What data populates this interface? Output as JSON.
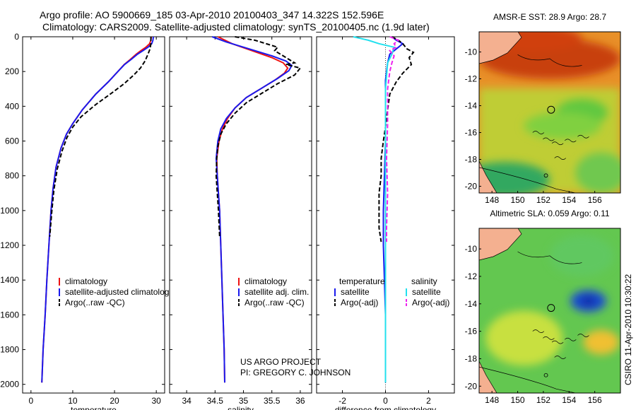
{
  "header": {
    "line1": "Argo profile: AO 5900669_185 03-Apr-2010 20100403_347 14.322S 152.596E",
    "line2": "Climatology: CARS2009. Satellite-adjusted climatology: synTS_20100405.nc (1.9d later)"
  },
  "colors": {
    "climatology": "#ee1111",
    "satellite": "#1a1aee",
    "argo": "#000000",
    "satellite_salinity": "#22e0ee",
    "argo_salinity_adj": "#ee22ee"
  },
  "side_text": {
    "project": "US ARGO PROJECT",
    "pi": "PI: GREGORY C. JOHNSON",
    "credit": "CSIRO 11-Apr-2010 10:30:22"
  },
  "chart_data": [
    {
      "type": "line",
      "id": "temperature",
      "xlabel": "temperature",
      "ylabel": "",
      "xlim": [
        -2,
        32
      ],
      "ylim": [
        2050,
        0
      ],
      "xticks": [
        0,
        10,
        20,
        30
      ],
      "yticks": [
        0,
        200,
        400,
        600,
        800,
        1000,
        1200,
        1400,
        1600,
        1800,
        2000
      ],
      "legend": {
        "position": "lower-center",
        "entries": [
          "climatology",
          "satellite-adjusted climatology",
          "Argo(..raw -QC)"
        ]
      },
      "series": [
        {
          "name": "climatology",
          "style": "solid",
          "color_key": "climatology",
          "points": [
            [
              28.8,
              0
            ],
            [
              28.7,
              20
            ],
            [
              28.4,
              40
            ],
            [
              27.5,
              60
            ],
            [
              26.3,
              80
            ],
            [
              25.2,
              100
            ],
            [
              23.8,
              130
            ],
            [
              22.3,
              160
            ],
            [
              20.8,
              200
            ],
            [
              18.5,
              260
            ],
            [
              15.5,
              330
            ],
            [
              12.3,
              420
            ],
            [
              10.0,
              500
            ],
            [
              8.5,
              560
            ],
            [
              7.2,
              640
            ],
            [
              6.0,
              750
            ],
            [
              5.3,
              870
            ],
            [
              4.8,
              1000
            ],
            [
              4.3,
              1200
            ],
            [
              3.8,
              1400
            ],
            [
              3.4,
              1600
            ],
            [
              2.9,
              1800
            ],
            [
              2.6,
              1990
            ]
          ]
        },
        {
          "name": "satellite-adjusted climatology",
          "style": "solid",
          "color_key": "satellite",
          "points": [
            [
              29.3,
              0
            ],
            [
              29.2,
              20
            ],
            [
              28.9,
              40
            ],
            [
              28.0,
              60
            ],
            [
              26.8,
              80
            ],
            [
              25.5,
              100
            ],
            [
              24.0,
              130
            ],
            [
              22.4,
              160
            ],
            [
              20.8,
              200
            ],
            [
              18.5,
              260
            ],
            [
              15.5,
              330
            ],
            [
              12.3,
              420
            ],
            [
              10.0,
              500
            ],
            [
              8.5,
              560
            ],
            [
              7.2,
              640
            ],
            [
              6.0,
              750
            ],
            [
              5.3,
              870
            ],
            [
              4.8,
              1000
            ],
            [
              4.3,
              1200
            ],
            [
              3.8,
              1400
            ],
            [
              3.4,
              1600
            ],
            [
              2.9,
              1800
            ],
            [
              2.6,
              1990
            ]
          ]
        },
        {
          "name": "Argo(..raw -QC)",
          "style": "dashed",
          "color_key": "argo",
          "points": [
            [
              28.7,
              0
            ],
            [
              28.7,
              40
            ],
            [
              28.5,
              70
            ],
            [
              28.0,
              100
            ],
            [
              27.3,
              140
            ],
            [
              26.2,
              180
            ],
            [
              24.6,
              220
            ],
            [
              22.3,
              270
            ],
            [
              19.0,
              330
            ],
            [
              15.5,
              390
            ],
            [
              12.0,
              460
            ],
            [
              10.0,
              520
            ],
            [
              8.6,
              580
            ],
            [
              7.4,
              660
            ],
            [
              6.3,
              760
            ],
            [
              5.5,
              880
            ],
            [
              5.0,
              1000
            ],
            [
              4.5,
              1150
            ]
          ]
        }
      ]
    },
    {
      "type": "line",
      "id": "salinity",
      "xlabel": "salinity",
      "ylabel": "",
      "xlim": [
        33.7,
        36.2
      ],
      "ylim": [
        2050,
        0
      ],
      "xticks": [
        34,
        34.5,
        35,
        35.5,
        36
      ],
      "xtick_labels": [
        "34",
        "34.5",
        "35",
        "35.5",
        "36"
      ],
      "legend": {
        "position": "lower-center",
        "entries": [
          "climatology",
          "satellite adj. clim.",
          "Argo(..raw -QC)"
        ]
      },
      "series": [
        {
          "name": "climatology",
          "style": "solid",
          "color_key": "climatology",
          "points": [
            [
              34.55,
              0
            ],
            [
              34.8,
              40
            ],
            [
              35.15,
              80
            ],
            [
              35.5,
              120
            ],
            [
              35.7,
              150
            ],
            [
              35.78,
              180
            ],
            [
              35.72,
              210
            ],
            [
              35.55,
              250
            ],
            [
              35.3,
              300
            ],
            [
              35.05,
              350
            ],
            [
              34.85,
              410
            ],
            [
              34.72,
              470
            ],
            [
              34.63,
              530
            ],
            [
              34.57,
              600
            ],
            [
              34.53,
              700
            ],
            [
              34.54,
              800
            ],
            [
              34.56,
              900
            ],
            [
              34.58,
              1000
            ],
            [
              34.6,
              1200
            ],
            [
              34.62,
              1400
            ],
            [
              34.64,
              1600
            ],
            [
              34.66,
              1800
            ],
            [
              34.67,
              1990
            ]
          ]
        },
        {
          "name": "satellite adj. clim.",
          "style": "solid",
          "color_key": "satellite",
          "points": [
            [
              34.45,
              0
            ],
            [
              34.7,
              30
            ],
            [
              35.1,
              70
            ],
            [
              35.5,
              110
            ],
            [
              35.75,
              140
            ],
            [
              35.85,
              165
            ],
            [
              35.8,
              195
            ],
            [
              35.6,
              240
            ],
            [
              35.3,
              300
            ],
            [
              35.05,
              350
            ],
            [
              34.85,
              410
            ],
            [
              34.7,
              470
            ],
            [
              34.6,
              530
            ],
            [
              34.55,
              600
            ],
            [
              34.52,
              700
            ],
            [
              34.54,
              800
            ],
            [
              34.56,
              900
            ],
            [
              34.58,
              1000
            ],
            [
              34.6,
              1200
            ],
            [
              34.62,
              1400
            ],
            [
              34.64,
              1600
            ],
            [
              34.66,
              1800
            ],
            [
              34.67,
              1990
            ]
          ]
        },
        {
          "name": "Argo(..raw -QC)",
          "style": "dashed",
          "color_key": "argo",
          "points": [
            [
              34.85,
              0
            ],
            [
              35.2,
              20
            ],
            [
              35.6,
              60
            ],
            [
              35.55,
              80
            ],
            [
              35.9,
              150
            ],
            [
              35.75,
              160
            ],
            [
              36.0,
              180
            ],
            [
              35.9,
              220
            ],
            [
              35.6,
              270
            ],
            [
              35.3,
              330
            ],
            [
              35.05,
              380
            ],
            [
              34.85,
              440
            ],
            [
              34.7,
              500
            ],
            [
              34.6,
              560
            ],
            [
              34.55,
              630
            ],
            [
              34.53,
              700
            ],
            [
              34.52,
              800
            ],
            [
              34.54,
              900
            ],
            [
              34.56,
              1000
            ],
            [
              34.58,
              1150
            ]
          ]
        }
      ]
    },
    {
      "type": "line",
      "id": "difference",
      "xlabel": "difference from climatology",
      "ylabel": "",
      "xlim": [
        -3.2,
        3.2
      ],
      "ylim": [
        2050,
        0
      ],
      "xticks": [
        -2,
        0,
        2
      ],
      "legend": {
        "position": "lower-center",
        "columns": [
          {
            "title": "temperature",
            "entries": [
              "satellite",
              "Argo(-adj)"
            ]
          },
          {
            "title": "salinity",
            "entries": [
              "satellite",
              "Argo(-adj)"
            ]
          }
        ]
      },
      "series": [
        {
          "name": "temperature satellite",
          "style": "solid",
          "color_key": "satellite",
          "points": [
            [
              0.3,
              0
            ],
            [
              0.5,
              20
            ],
            [
              0.8,
              40
            ],
            [
              0.6,
              60
            ],
            [
              0.2,
              100
            ],
            [
              0.1,
              150
            ],
            [
              0,
              250
            ],
            [
              0,
              400
            ],
            [
              0,
              600
            ],
            [
              -0.05,
              800
            ],
            [
              -0.1,
              1000
            ],
            [
              -0.1,
              1200
            ],
            [
              -0.05,
              1400
            ],
            [
              0,
              1600
            ],
            [
              0,
              1800
            ],
            [
              0,
              1990
            ]
          ]
        },
        {
          "name": "temperature Argo(-adj)",
          "style": "dashed",
          "color_key": "argo",
          "points": [
            [
              0.3,
              0
            ],
            [
              0.6,
              20
            ],
            [
              0.8,
              40
            ],
            [
              1.0,
              70
            ],
            [
              1.3,
              90
            ],
            [
              1.1,
              120
            ],
            [
              1.2,
              160
            ],
            [
              0.8,
              210
            ],
            [
              0.5,
              260
            ],
            [
              0.2,
              330
            ],
            [
              0.1,
              420
            ],
            [
              0,
              520
            ],
            [
              -0.1,
              600
            ],
            [
              -0.2,
              700
            ],
            [
              -0.2,
              800
            ],
            [
              -0.3,
              900
            ],
            [
              -0.3,
              1000
            ],
            [
              -0.3,
              1100
            ],
            [
              -0.2,
              1180
            ]
          ]
        },
        {
          "name": "salinity satellite",
          "style": "solid",
          "color_key": "satellite_salinity",
          "points": [
            [
              -1.5,
              0
            ],
            [
              -0.8,
              20
            ],
            [
              -0.3,
              40
            ],
            [
              0.4,
              60
            ],
            [
              0.3,
              100
            ],
            [
              0.1,
              150
            ],
            [
              0,
              300
            ],
            [
              0,
              600
            ],
            [
              0,
              1000
            ],
            [
              0,
              1400
            ],
            [
              0,
              1800
            ],
            [
              0,
              1990
            ]
          ]
        },
        {
          "name": "salinity Argo(-adj)",
          "style": "dashed",
          "color_key": "argo_salinity_adj",
          "points": [
            [
              0.2,
              0
            ],
            [
              0.6,
              20
            ],
            [
              0.4,
              40
            ],
            [
              0.5,
              60
            ],
            [
              0.2,
              80
            ],
            [
              0.4,
              110
            ],
            [
              0.3,
              150
            ],
            [
              0.2,
              200
            ],
            [
              0.1,
              300
            ],
            [
              0.1,
              500
            ],
            [
              0.05,
              700
            ],
            [
              0.1,
              900
            ],
            [
              0.05,
              1100
            ],
            [
              0.05,
              1180
            ]
          ]
        }
      ]
    },
    {
      "type": "heatmap",
      "id": "sst_map",
      "title": "AMSR-E SST: 28.9 Argo: 28.7",
      "xlim": [
        147,
        158
      ],
      "ylim": [
        -20.5,
        -8.5
      ],
      "xticks": [
        148,
        150,
        152,
        154,
        156
      ],
      "yticks": [
        -10,
        -12,
        -14,
        -16,
        -18,
        -20
      ],
      "profile_location": {
        "lon": 152.6,
        "lat": -14.3
      },
      "secondary_marker": {
        "lon": 152.2,
        "lat": -19.2
      },
      "features": [
        {
          "type": "blob",
          "lon": 152.5,
          "lat": -10.5,
          "rx": 5.5,
          "ry": 1.5,
          "color": "#c84010"
        },
        {
          "type": "blob",
          "lon": 151.0,
          "lat": -9.0,
          "rx": 4.0,
          "ry": 1.0,
          "color": "#d04010"
        },
        {
          "type": "blob",
          "lon": 155.0,
          "lat": -14.5,
          "rx": 2.0,
          "ry": 1.0,
          "color": "#60c840"
        },
        {
          "type": "blob",
          "lon": 153.5,
          "lat": -15.5,
          "rx": 3.0,
          "ry": 1.0,
          "color": "#80d040"
        },
        {
          "type": "blob",
          "lon": 149.0,
          "lat": -19.5,
          "rx": 3.5,
          "ry": 1.3,
          "color": "#30a860"
        },
        {
          "type": "blob",
          "lon": 156.5,
          "lat": -19.0,
          "rx": 2.0,
          "ry": 1.5,
          "color": "#70c850"
        }
      ]
    },
    {
      "type": "heatmap",
      "id": "sla_map",
      "title": "Altimetric SLA: 0.059 Argo: 0.11",
      "xlim": [
        147,
        158
      ],
      "ylim": [
        -20.5,
        -8.5
      ],
      "xticks": [
        148,
        150,
        152,
        154,
        156
      ],
      "yticks": [
        -10,
        -12,
        -14,
        -16,
        -18,
        -20
      ],
      "profile_location": {
        "lon": 152.6,
        "lat": -14.3
      },
      "secondary_marker": {
        "lon": 152.2,
        "lat": -19.2
      },
      "features": [
        {
          "type": "blob",
          "lon": 155.5,
          "lat": -13.8,
          "rx": 1.4,
          "ry": 0.8,
          "color": "#1a4ed0"
        },
        {
          "type": "blob",
          "lon": 155.5,
          "lat": -13.8,
          "rx": 0.6,
          "ry": 0.4,
          "color": "#0a2ea8"
        },
        {
          "type": "blob",
          "lon": 156.5,
          "lat": -16.8,
          "rx": 1.4,
          "ry": 0.9,
          "color": "#f0c030"
        },
        {
          "type": "blob",
          "lon": 150.5,
          "lat": -16.5,
          "rx": 3.0,
          "ry": 2.0,
          "color": "#c8e040"
        },
        {
          "type": "blob",
          "lon": 155.0,
          "lat": -10.5,
          "rx": 2.5,
          "ry": 1.5,
          "color": "#60c860"
        }
      ]
    }
  ]
}
